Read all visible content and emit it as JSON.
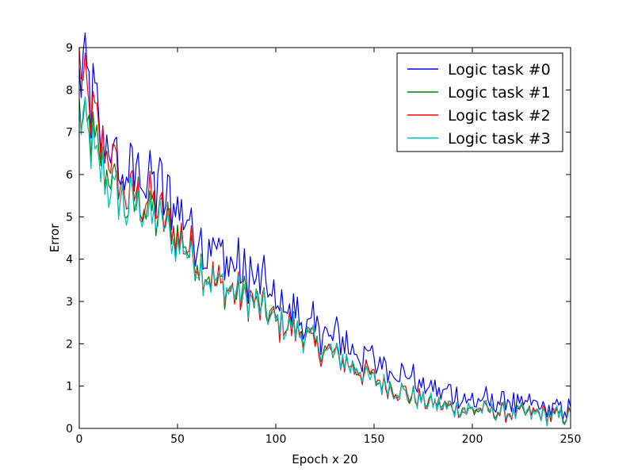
{
  "chart_data": {
    "type": "line",
    "title": "",
    "xlabel": "Epoch x 20",
    "ylabel": "Error",
    "xlim": [
      0,
      250
    ],
    "ylim": [
      0,
      9
    ],
    "xticks": [
      0,
      50,
      100,
      150,
      200,
      250
    ],
    "yticks": [
      0,
      1,
      2,
      3,
      4,
      5,
      6,
      7,
      8,
      9
    ],
    "grid": false,
    "legend_position": "top-right",
    "x_step": 1,
    "series": [
      {
        "name": "Logic task #0",
        "color": "#0000ff",
        "x": [
          0,
          5,
          10,
          15,
          20,
          25,
          30,
          35,
          40,
          45,
          50,
          55,
          60,
          65,
          70,
          75,
          80,
          85,
          90,
          95,
          100,
          105,
          110,
          115,
          120,
          125,
          130,
          135,
          140,
          145,
          150,
          155,
          160,
          165,
          170,
          175,
          180,
          185,
          190,
          195,
          200,
          205,
          210,
          215,
          220,
          225,
          230,
          235,
          240,
          245,
          250
        ],
        "values": [
          8.5,
          7.9,
          7.2,
          6.9,
          6.1,
          6.0,
          6.1,
          5.9,
          5.7,
          5.4,
          5.1,
          4.9,
          4.7,
          4.3,
          4.0,
          3.9,
          3.8,
          3.7,
          3.5,
          3.3,
          3.0,
          2.9,
          2.8,
          2.6,
          2.4,
          2.3,
          2.2,
          2.1,
          1.9,
          1.75,
          1.6,
          1.5,
          1.4,
          1.3,
          1.15,
          1.0,
          0.9,
          0.8,
          0.8,
          0.75,
          0.7,
          0.65,
          0.65,
          0.6,
          0.6,
          0.55,
          0.55,
          0.55,
          0.5,
          0.45,
          0.5
        ]
      },
      {
        "name": "Logic task #1",
        "color": "#008000",
        "x": [
          0,
          5,
          10,
          15,
          20,
          25,
          30,
          35,
          40,
          45,
          50,
          55,
          60,
          65,
          70,
          75,
          80,
          85,
          90,
          95,
          100,
          105,
          110,
          115,
          120,
          125,
          130,
          135,
          140,
          145,
          150,
          155,
          160,
          165,
          170,
          175,
          180,
          185,
          190,
          195,
          200,
          205,
          210,
          215,
          220,
          225,
          230,
          235,
          240,
          245,
          250
        ],
        "values": [
          7.6,
          6.9,
          6.4,
          6.0,
          5.5,
          5.3,
          5.4,
          5.2,
          5.0,
          4.8,
          4.5,
          4.3,
          4.0,
          3.7,
          3.4,
          3.3,
          3.2,
          3.1,
          2.9,
          2.75,
          2.5,
          2.45,
          2.35,
          2.2,
          1.95,
          1.85,
          1.75,
          1.6,
          1.45,
          1.3,
          1.15,
          1.05,
          0.95,
          0.85,
          0.75,
          0.65,
          0.6,
          0.5,
          0.5,
          0.45,
          0.45,
          0.45,
          0.4,
          0.4,
          0.35,
          0.35,
          0.35,
          0.35,
          0.3,
          0.3,
          0.3
        ]
      },
      {
        "name": "Logic task #2",
        "color": "#ff0000",
        "x": [
          0,
          5,
          10,
          15,
          20,
          25,
          30,
          35,
          40,
          45,
          50,
          55,
          60,
          65,
          70,
          75,
          80,
          85,
          90,
          95,
          100,
          105,
          110,
          115,
          120,
          125,
          130,
          135,
          140,
          145,
          150,
          155,
          160,
          165,
          170,
          175,
          180,
          185,
          190,
          195,
          200,
          205,
          210,
          215,
          220,
          225,
          230,
          235,
          240,
          245,
          250
        ],
        "values": [
          8.6,
          7.6,
          6.9,
          6.5,
          5.8,
          5.6,
          5.6,
          5.4,
          5.2,
          4.9,
          4.6,
          4.3,
          4.0,
          3.7,
          3.4,
          3.3,
          3.2,
          3.1,
          2.9,
          2.75,
          2.5,
          2.45,
          2.35,
          2.2,
          1.95,
          1.85,
          1.75,
          1.6,
          1.45,
          1.3,
          1.15,
          1.05,
          0.95,
          0.85,
          0.75,
          0.65,
          0.6,
          0.5,
          0.5,
          0.45,
          0.45,
          0.45,
          0.4,
          0.4,
          0.35,
          0.35,
          0.35,
          0.35,
          0.3,
          0.3,
          0.3
        ]
      },
      {
        "name": "Logic task #3",
        "color": "#00bfbf",
        "x": [
          0,
          5,
          10,
          15,
          20,
          25,
          30,
          35,
          40,
          45,
          50,
          55,
          60,
          65,
          70,
          75,
          80,
          85,
          90,
          95,
          100,
          105,
          110,
          115,
          120,
          125,
          130,
          135,
          140,
          145,
          150,
          155,
          160,
          165,
          170,
          175,
          180,
          185,
          190,
          195,
          200,
          205,
          210,
          215,
          220,
          225,
          230,
          235,
          240,
          245,
          250
        ],
        "values": [
          7.4,
          6.7,
          6.2,
          5.8,
          5.4,
          5.2,
          5.3,
          5.1,
          4.9,
          4.7,
          4.4,
          4.2,
          3.9,
          3.7,
          3.4,
          3.3,
          3.2,
          3.1,
          2.9,
          2.75,
          2.5,
          2.45,
          2.35,
          2.2,
          1.95,
          1.85,
          1.75,
          1.6,
          1.45,
          1.3,
          1.15,
          1.05,
          0.95,
          0.85,
          0.75,
          0.65,
          0.6,
          0.5,
          0.5,
          0.45,
          0.45,
          0.45,
          0.4,
          0.4,
          0.35,
          0.35,
          0.35,
          0.35,
          0.3,
          0.3,
          0.3
        ]
      }
    ]
  }
}
